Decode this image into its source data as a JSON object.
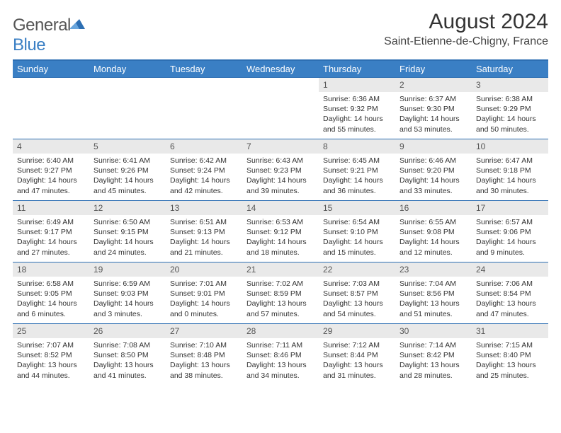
{
  "logo": {
    "text_left": "General",
    "text_right": "Blue"
  },
  "title": "August 2024",
  "location": "Saint-Etienne-de-Chigny, France",
  "colors": {
    "header_bg": "#3a7fc4",
    "border": "#2d6fb3",
    "daynum_bg": "#e9e9e9",
    "text": "#333333"
  },
  "weekdays": [
    "Sunday",
    "Monday",
    "Tuesday",
    "Wednesday",
    "Thursday",
    "Friday",
    "Saturday"
  ],
  "weeks": [
    [
      null,
      null,
      null,
      null,
      {
        "n": "1",
        "sr": "6:36 AM",
        "ss": "9:32 PM",
        "dl": "14 hours and 55 minutes."
      },
      {
        "n": "2",
        "sr": "6:37 AM",
        "ss": "9:30 PM",
        "dl": "14 hours and 53 minutes."
      },
      {
        "n": "3",
        "sr": "6:38 AM",
        "ss": "9:29 PM",
        "dl": "14 hours and 50 minutes."
      }
    ],
    [
      {
        "n": "4",
        "sr": "6:40 AM",
        "ss": "9:27 PM",
        "dl": "14 hours and 47 minutes."
      },
      {
        "n": "5",
        "sr": "6:41 AM",
        "ss": "9:26 PM",
        "dl": "14 hours and 45 minutes."
      },
      {
        "n": "6",
        "sr": "6:42 AM",
        "ss": "9:24 PM",
        "dl": "14 hours and 42 minutes."
      },
      {
        "n": "7",
        "sr": "6:43 AM",
        "ss": "9:23 PM",
        "dl": "14 hours and 39 minutes."
      },
      {
        "n": "8",
        "sr": "6:45 AM",
        "ss": "9:21 PM",
        "dl": "14 hours and 36 minutes."
      },
      {
        "n": "9",
        "sr": "6:46 AM",
        "ss": "9:20 PM",
        "dl": "14 hours and 33 minutes."
      },
      {
        "n": "10",
        "sr": "6:47 AM",
        "ss": "9:18 PM",
        "dl": "14 hours and 30 minutes."
      }
    ],
    [
      {
        "n": "11",
        "sr": "6:49 AM",
        "ss": "9:17 PM",
        "dl": "14 hours and 27 minutes."
      },
      {
        "n": "12",
        "sr": "6:50 AM",
        "ss": "9:15 PM",
        "dl": "14 hours and 24 minutes."
      },
      {
        "n": "13",
        "sr": "6:51 AM",
        "ss": "9:13 PM",
        "dl": "14 hours and 21 minutes."
      },
      {
        "n": "14",
        "sr": "6:53 AM",
        "ss": "9:12 PM",
        "dl": "14 hours and 18 minutes."
      },
      {
        "n": "15",
        "sr": "6:54 AM",
        "ss": "9:10 PM",
        "dl": "14 hours and 15 minutes."
      },
      {
        "n": "16",
        "sr": "6:55 AM",
        "ss": "9:08 PM",
        "dl": "14 hours and 12 minutes."
      },
      {
        "n": "17",
        "sr": "6:57 AM",
        "ss": "9:06 PM",
        "dl": "14 hours and 9 minutes."
      }
    ],
    [
      {
        "n": "18",
        "sr": "6:58 AM",
        "ss": "9:05 PM",
        "dl": "14 hours and 6 minutes."
      },
      {
        "n": "19",
        "sr": "6:59 AM",
        "ss": "9:03 PM",
        "dl": "14 hours and 3 minutes."
      },
      {
        "n": "20",
        "sr": "7:01 AM",
        "ss": "9:01 PM",
        "dl": "14 hours and 0 minutes."
      },
      {
        "n": "21",
        "sr": "7:02 AM",
        "ss": "8:59 PM",
        "dl": "13 hours and 57 minutes."
      },
      {
        "n": "22",
        "sr": "7:03 AM",
        "ss": "8:57 PM",
        "dl": "13 hours and 54 minutes."
      },
      {
        "n": "23",
        "sr": "7:04 AM",
        "ss": "8:56 PM",
        "dl": "13 hours and 51 minutes."
      },
      {
        "n": "24",
        "sr": "7:06 AM",
        "ss": "8:54 PM",
        "dl": "13 hours and 47 minutes."
      }
    ],
    [
      {
        "n": "25",
        "sr": "7:07 AM",
        "ss": "8:52 PM",
        "dl": "13 hours and 44 minutes."
      },
      {
        "n": "26",
        "sr": "7:08 AM",
        "ss": "8:50 PM",
        "dl": "13 hours and 41 minutes."
      },
      {
        "n": "27",
        "sr": "7:10 AM",
        "ss": "8:48 PM",
        "dl": "13 hours and 38 minutes."
      },
      {
        "n": "28",
        "sr": "7:11 AM",
        "ss": "8:46 PM",
        "dl": "13 hours and 34 minutes."
      },
      {
        "n": "29",
        "sr": "7:12 AM",
        "ss": "8:44 PM",
        "dl": "13 hours and 31 minutes."
      },
      {
        "n": "30",
        "sr": "7:14 AM",
        "ss": "8:42 PM",
        "dl": "13 hours and 28 minutes."
      },
      {
        "n": "31",
        "sr": "7:15 AM",
        "ss": "8:40 PM",
        "dl": "13 hours and 25 minutes."
      }
    ]
  ],
  "labels": {
    "sunrise": "Sunrise:",
    "sunset": "Sunset:",
    "daylight": "Daylight:"
  }
}
